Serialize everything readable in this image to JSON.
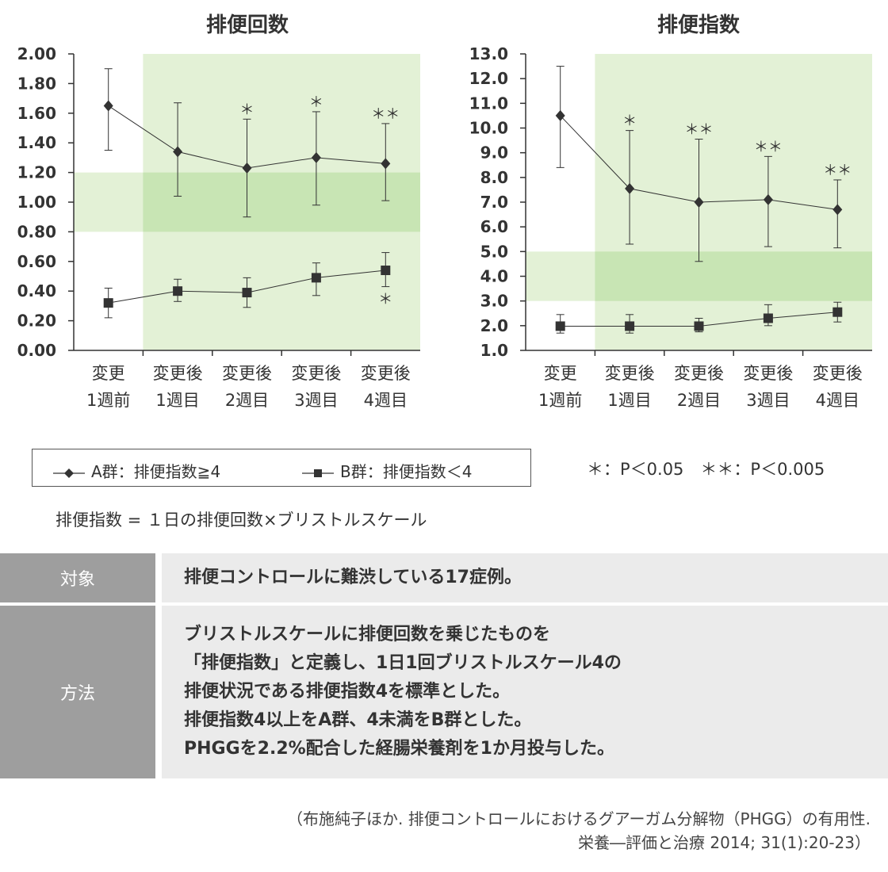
{
  "chart_data": [
    {
      "type": "line",
      "title": "排便回数",
      "categories": [
        [
          "変更",
          "1週前"
        ],
        [
          "変更後",
          "1週目"
        ],
        [
          "変更後",
          "2週目"
        ],
        [
          "変更後",
          "3週目"
        ],
        [
          "変更後",
          "4週目"
        ]
      ],
      "yticks": [
        "0.00",
        "0.20",
        "0.40",
        "0.60",
        "0.80",
        "1.00",
        "1.20",
        "1.40",
        "1.60",
        "1.80",
        "2.00"
      ],
      "ylim": [
        0,
        2.0
      ],
      "normal_band": [
        0.8,
        1.2
      ],
      "post_change_shade_from_index": 1,
      "series": [
        {
          "legend_ref": "A",
          "marker": "diamond",
          "values": [
            1.65,
            1.34,
            1.23,
            1.3,
            1.26
          ],
          "err_low": [
            1.35,
            1.04,
            0.9,
            0.98,
            1.01
          ],
          "err_high": [
            1.9,
            1.67,
            1.56,
            1.61,
            1.53
          ],
          "sig": [
            "",
            "",
            "*",
            "*",
            "**"
          ],
          "sig_position": "above"
        },
        {
          "legend_ref": "B",
          "marker": "square",
          "values": [
            0.32,
            0.4,
            0.39,
            0.49,
            0.54
          ],
          "err_low": [
            0.22,
            0.33,
            0.29,
            0.37,
            0.43
          ],
          "err_high": [
            0.42,
            0.48,
            0.49,
            0.59,
            0.66
          ],
          "sig": [
            "",
            "",
            "",
            "",
            "*"
          ],
          "sig_position": "below"
        }
      ]
    },
    {
      "type": "line",
      "title": "排便指数",
      "categories": [
        [
          "変更",
          "1週前"
        ],
        [
          "変更後",
          "1週目"
        ],
        [
          "変更後",
          "2週目"
        ],
        [
          "変更後",
          "3週目"
        ],
        [
          "変更後",
          "4週目"
        ]
      ],
      "yticks": [
        "1.0",
        "2.0",
        "3.0",
        "4.0",
        "5.0",
        "6.0",
        "7.0",
        "8.0",
        "9.0",
        "10.0",
        "11.0",
        "12.0",
        "13.0"
      ],
      "ylim": [
        1.0,
        13.0
      ],
      "normal_band": [
        3.0,
        5.0
      ],
      "post_change_shade_from_index": 1,
      "series": [
        {
          "legend_ref": "A",
          "marker": "diamond",
          "values": [
            10.5,
            7.55,
            7.0,
            7.1,
            6.7
          ],
          "err_low": [
            8.4,
            5.3,
            4.6,
            5.2,
            5.15
          ],
          "err_high": [
            12.5,
            9.9,
            9.55,
            8.85,
            7.9
          ],
          "sig": [
            "",
            "*",
            "**",
            "**",
            "**"
          ],
          "sig_position": "above"
        },
        {
          "legend_ref": "B",
          "marker": "square",
          "values": [
            1.98,
            1.98,
            1.98,
            2.3,
            2.55
          ],
          "err_low": [
            1.7,
            1.7,
            1.75,
            2.0,
            2.15
          ],
          "err_high": [
            2.45,
            2.45,
            2.3,
            2.85,
            2.95
          ],
          "sig": [
            "",
            "",
            "",
            "",
            ""
          ],
          "sig_position": "above"
        }
      ]
    }
  ],
  "legend": {
    "a_label": "A群：排便指数≧4",
    "b_label": "B群：排便指数＜4"
  },
  "significance_note": "＊：P＜0.05　＊＊：P＜0.005",
  "formula_note": "排便指数 = １日の排便回数×ブリストルスケール",
  "info_table": {
    "subject_head": "対象",
    "subject_text": "排便コントロールに難渋している17症例。",
    "method_head": "方法",
    "method_lines": [
      "ブリストルスケールに排便回数を乗じたものを",
      "「排便指数」と定義し、1日1回ブリストルスケール4の",
      "排便状況である排便指数4を標準とした。",
      "排便指数4以上をA群、4未満をB群とした。",
      "PHGGを2.2%配合した経腸栄養剤を1か月投与した。"
    ]
  },
  "citation": {
    "line1": "（布施純子ほか. 排便コントロールにおけるグアーガム分解物（PHGG）の有用性.",
    "line2": "栄養―評価と治療 2014; 31(1):20-23）"
  },
  "colors": {
    "light_green": "#e3f1d6",
    "mid_green": "#c8e5b4",
    "line": "#333333",
    "table_head": "#9e9e9e",
    "table_cell": "#ebebeb"
  }
}
